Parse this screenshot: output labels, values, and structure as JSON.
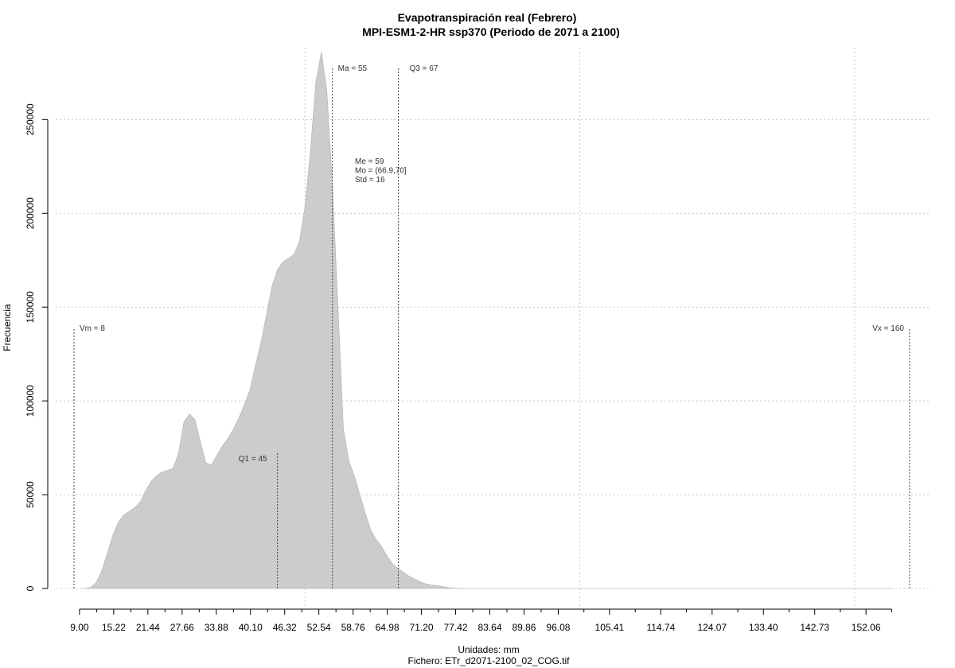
{
  "chart_data": {
    "type": "area",
    "title": "Evapotranspiración real (Febrero)",
    "subtitle": "MPI-ESM1-2-HR ssp370 (Periodo de 2071 a 2100)",
    "xlabel": "Unidades: mm",
    "footer": "Fichero: ETr_d2071-2100_02_COG.tif",
    "ylabel": "Frecuencia",
    "xlim": [
      8,
      160
    ],
    "ylim": [
      0,
      290000
    ],
    "x_ticks": [
      "9.00",
      "15.22",
      "21.44",
      "27.66",
      "33.88",
      "40.10",
      "46.32",
      "52.54",
      "58.76",
      "64.98",
      "71.20",
      "77.42",
      "83.64",
      "89.86",
      "96.08",
      "105.41",
      "114.74",
      "124.07",
      "133.40",
      "142.73",
      "152.06"
    ],
    "x_tick_values": [
      9.0,
      15.22,
      21.44,
      27.66,
      33.88,
      40.1,
      46.32,
      52.54,
      58.76,
      64.98,
      71.2,
      77.42,
      83.64,
      89.86,
      96.08,
      105.41,
      114.74,
      124.07,
      133.4,
      142.73,
      152.06
    ],
    "x_minor_ticks": [
      12.11,
      18.33,
      24.55,
      30.77,
      36.99,
      43.21,
      49.43,
      55.65,
      61.87,
      68.09,
      74.31,
      80.53,
      86.75,
      92.97,
      100.75,
      110.08,
      119.41,
      128.74,
      138.07,
      147.4,
      156.73
    ],
    "y_ticks": [
      "0",
      "50000",
      "100000",
      "150000",
      "200000",
      "250000"
    ],
    "y_tick_values": [
      0,
      50000,
      100000,
      150000,
      200000,
      250000
    ],
    "x_grid": [
      50,
      100,
      150
    ],
    "grid": true,
    "series": [
      {
        "x": [
          9.0,
          10.0,
          11.0,
          12.0,
          13.0,
          14.0,
          15.0,
          16.0,
          17.0,
          18.0,
          19.0,
          20.0,
          21.0,
          22.0,
          23.0,
          24.0,
          25.0,
          26.0,
          27.0,
          28.0,
          29.0,
          30.0,
          31.0,
          32.0,
          33.0,
          34.0,
          35.0,
          36.0,
          37.0,
          38.0,
          39.0,
          40.0,
          41.0,
          42.0,
          43.0,
          44.0,
          45.0,
          46.0,
          47.0,
          48.0,
          49.0,
          50.0,
          51.0,
          52.0,
          53.0,
          54.0,
          55.0,
          56.0,
          57.0,
          58.0,
          59.0,
          60.0,
          61.0,
          62.0,
          63.0,
          64.0,
          65.0,
          66.0,
          67.0,
          68.0,
          69.0,
          70.0,
          71.0,
          72.0,
          73.0,
          74.0,
          75.0,
          76.0,
          77.0,
          78.0,
          79.0,
          80.0,
          82.0,
          84.0,
          86.0,
          88.0,
          90.0,
          92.0,
          94.0,
          96.0,
          98.0,
          100.0,
          102.0,
          105.0,
          110.0,
          120.0,
          130.0,
          140.0,
          150.0,
          157.0
        ],
        "y": [
          0,
          0,
          500,
          3000,
          9000,
          18000,
          28000,
          35000,
          39000,
          41000,
          43000,
          46000,
          52000,
          57000,
          60000,
          62000,
          63000,
          64000,
          72000,
          89000,
          93000,
          90000,
          78000,
          67000,
          66000,
          71000,
          76000,
          80000,
          85000,
          91000,
          98000,
          106000,
          119000,
          131000,
          146000,
          161000,
          170000,
          174000,
          176000,
          178000,
          185000,
          203000,
          233000,
          270000,
          286000,
          265000,
          215000,
          151000,
          85000,
          68000,
          60000,
          50000,
          40000,
          31000,
          26000,
          22000,
          17000,
          13000,
          10500,
          8500,
          6500,
          5000,
          3500,
          2500,
          1800,
          1700,
          1000,
          500,
          200,
          100,
          0,
          0,
          0,
          0,
          0,
          0,
          0,
          0,
          0,
          0,
          0,
          0,
          0,
          0,
          0,
          0,
          0,
          0,
          0,
          0
        ],
        "color": "#cccccc"
      }
    ],
    "annotations": {
      "vm": {
        "label": "Vm = 8",
        "x": 8
      },
      "vx": {
        "label": "Vx = 160",
        "x": 160
      },
      "q1": {
        "label": "Q1 = 45",
        "x": 45,
        "y": 73000
      },
      "ma": {
        "label": "Ma = 55",
        "x": 55
      },
      "q3": {
        "label": "Q3 = 67",
        "x": 67
      },
      "stats": [
        "Me = 59",
        "Mo = (66.9,70]",
        "Std = 16"
      ]
    }
  }
}
